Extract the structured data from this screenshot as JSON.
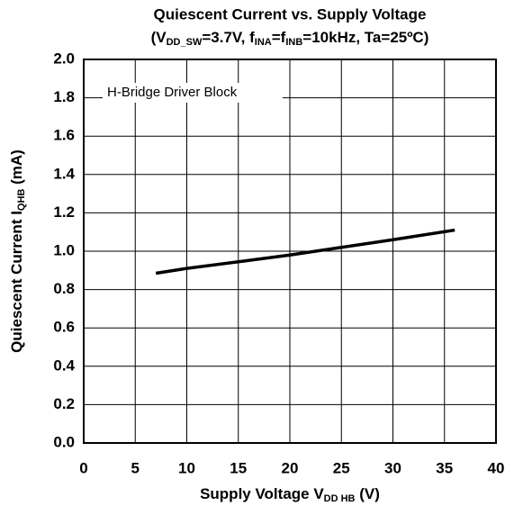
{
  "chart_data": {
    "type": "line",
    "title": "Quiescent Current vs. Supply Voltage",
    "subtitle": [
      "(V",
      "DD_SW",
      "=3.7V, f",
      "INA",
      "=f",
      "INB",
      "=10kHz, Ta=25ºC)"
    ],
    "xlabel": [
      "Supply Voltage  V",
      "DD HB",
      "  (V)"
    ],
    "ylabel": [
      "Quiescent Current  I",
      "QHB",
      "  (mA)"
    ],
    "annotation": "H-Bridge Driver Block",
    "x": [
      7,
      10,
      15,
      20,
      25,
      30,
      36
    ],
    "series": [
      {
        "name": "H-Bridge Driver Block",
        "color": "#000000",
        "values": [
          0.885,
          0.91,
          0.945,
          0.98,
          1.02,
          1.06,
          1.11
        ]
      }
    ],
    "xlim": [
      0,
      40
    ],
    "xticks": [
      0,
      5,
      10,
      15,
      20,
      25,
      30,
      35,
      40
    ],
    "ylim": [
      0,
      2
    ],
    "yticks": [
      {
        "value": 0,
        "label": "0.0"
      },
      0.2,
      0.4,
      0.6,
      0.8,
      {
        "value": 1,
        "label": "1.0"
      },
      1.2,
      1.4,
      1.6,
      1.8,
      {
        "value": 2,
        "label": "2.0"
      }
    ],
    "grid": true
  }
}
